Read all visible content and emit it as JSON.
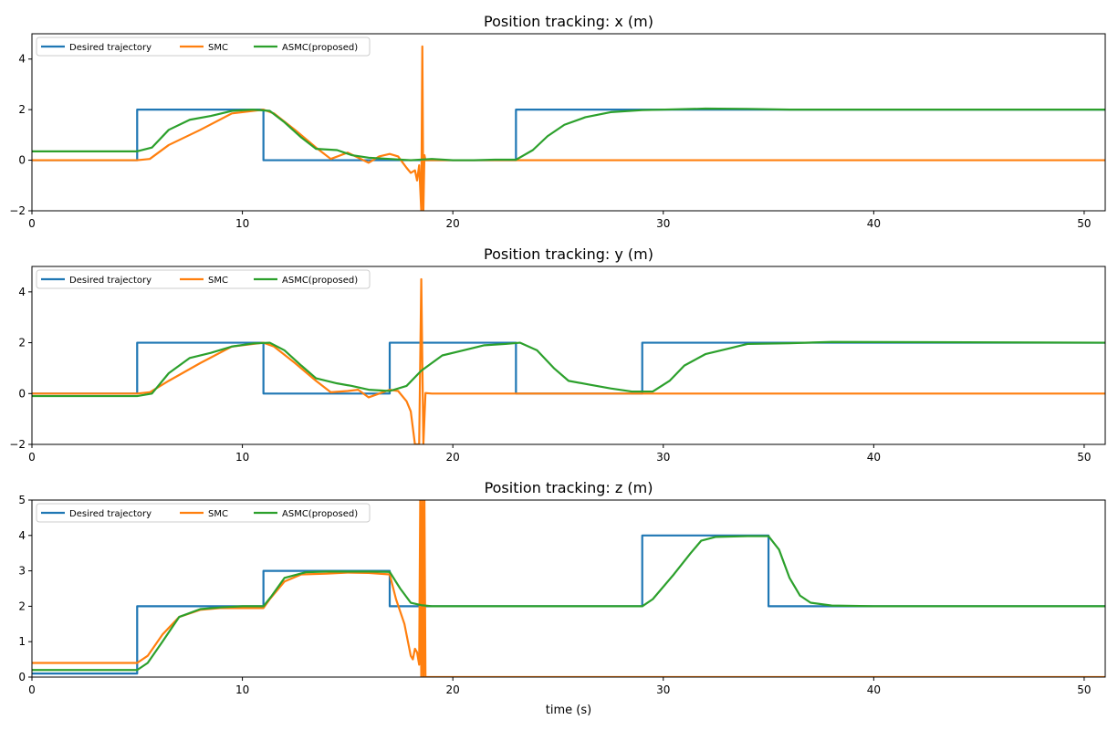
{
  "colors": {
    "desired": "#1f77b4",
    "smc": "#ff7f0e",
    "asmc": "#2ca02c"
  },
  "legend_placement": "upper-left",
  "chart_data": [
    {
      "type": "line",
      "title": "Position tracking: x (m)",
      "xlabel": "",
      "ylabel": "",
      "xlim": [
        0,
        51
      ],
      "ylim": [
        -2,
        5
      ],
      "xticks": [
        0,
        10,
        20,
        30,
        40,
        50
      ],
      "yticks": [
        -2,
        0,
        2,
        4
      ],
      "grid": false,
      "legend": [
        "Desired trajectory",
        "SMC",
        "ASMC(proposed)"
      ],
      "series": [
        {
          "name": "Desired trajectory",
          "x": [
            0,
            5,
            5,
            11,
            11,
            23,
            23,
            51
          ],
          "y": [
            0,
            0,
            2,
            2,
            0,
            0,
            2,
            2
          ]
        },
        {
          "name": "SMC",
          "x": [
            0,
            5,
            5.6,
            6.5,
            8,
            9.5,
            11,
            11.5,
            12.5,
            13.5,
            14.2,
            15,
            15.5,
            16,
            16.5,
            17,
            17.4,
            17.8,
            18,
            18.2,
            18.3,
            18.4,
            18.5,
            18.55,
            18.6,
            18.65,
            18.7,
            19,
            51
          ],
          "y": [
            0,
            0,
            0.05,
            0.6,
            1.2,
            1.85,
            2,
            1.85,
            1.2,
            0.5,
            0.05,
            0.3,
            0.1,
            -0.1,
            0.15,
            0.25,
            0.15,
            -0.3,
            -0.5,
            -0.4,
            -0.8,
            -0.2,
            -2,
            4.5,
            -2,
            0.2,
            0,
            0,
            0
          ]
        },
        {
          "name": "ASMC(proposed)",
          "x": [
            0,
            5,
            5.7,
            6.5,
            7.5,
            8.5,
            9.5,
            10.5,
            11.3,
            12,
            12.8,
            13.5,
            14.5,
            15.2,
            16,
            17,
            18,
            19,
            20,
            21,
            22,
            23,
            23.8,
            24.5,
            25.3,
            26.3,
            27.5,
            29,
            32,
            34,
            36,
            51
          ],
          "y": [
            0.35,
            0.35,
            0.5,
            1.2,
            1.6,
            1.75,
            1.95,
            2,
            1.95,
            1.5,
            0.9,
            0.45,
            0.4,
            0.2,
            0.1,
            0.05,
            0,
            0.05,
            0,
            0,
            0.02,
            0.02,
            0.4,
            0.95,
            1.4,
            1.7,
            1.9,
            1.98,
            2.04,
            2.03,
            2.0,
            2.0
          ]
        }
      ]
    },
    {
      "type": "line",
      "title": "Position tracking: y (m)",
      "xlabel": "",
      "ylabel": "",
      "xlim": [
        0,
        51
      ],
      "ylim": [
        -2,
        5
      ],
      "xticks": [
        0,
        10,
        20,
        30,
        40,
        50
      ],
      "yticks": [
        -2,
        0,
        2,
        4
      ],
      "grid": false,
      "legend": [
        "Desired trajectory",
        "SMC",
        "ASMC(proposed)"
      ],
      "series": [
        {
          "name": "Desired trajectory",
          "x": [
            0,
            5,
            5,
            11,
            11,
            17,
            17,
            23,
            23,
            29,
            29,
            51
          ],
          "y": [
            0,
            0,
            2,
            2,
            0,
            0,
            2,
            2,
            0,
            0,
            2,
            2
          ]
        },
        {
          "name": "SMC",
          "x": [
            0,
            5,
            5.6,
            6.5,
            8,
            9.5,
            11,
            11.5,
            12.5,
            13.5,
            14.2,
            15,
            15.5,
            16,
            16.5,
            17,
            17.4,
            17.8,
            18,
            18.2,
            18.3,
            18.4,
            18.5,
            18.6,
            18.7,
            19,
            51
          ],
          "y": [
            0,
            0,
            0.05,
            0.5,
            1.2,
            1.85,
            2,
            1.85,
            1.2,
            0.5,
            0.05,
            0.1,
            0.15,
            -0.15,
            0,
            0.15,
            0.1,
            -0.3,
            -0.7,
            -2,
            -2,
            -2,
            4.5,
            -2,
            0.02,
            0,
            0
          ]
        },
        {
          "name": "ASMC(proposed)",
          "x": [
            0,
            5,
            5.7,
            6.5,
            7.5,
            8.5,
            9.5,
            10.5,
            11.3,
            12,
            12.8,
            13.5,
            14.5,
            15.2,
            16,
            17,
            17.8,
            18.5,
            19.5,
            20.5,
            21.5,
            22.5,
            23.2,
            24,
            24.8,
            25.5,
            26.5,
            27.5,
            28.5,
            29.5,
            30.3,
            31,
            32,
            33,
            34,
            36,
            38,
            51
          ],
          "y": [
            -0.1,
            -0.1,
            0.0,
            0.8,
            1.4,
            1.6,
            1.85,
            1.97,
            2,
            1.7,
            1.1,
            0.6,
            0.4,
            0.3,
            0.15,
            0.1,
            0.3,
            0.9,
            1.5,
            1.7,
            1.9,
            1.95,
            2,
            1.7,
            1.0,
            0.5,
            0.35,
            0.2,
            0.08,
            0.08,
            0.5,
            1.1,
            1.55,
            1.75,
            1.95,
            1.98,
            2.03,
            2.0
          ]
        }
      ]
    },
    {
      "type": "line",
      "title": "Position tracking: z (m)",
      "xlabel": "time (s)",
      "ylabel": "",
      "xlim": [
        0,
        51
      ],
      "ylim": [
        0,
        5
      ],
      "xticks": [
        0,
        10,
        20,
        30,
        40,
        50
      ],
      "yticks": [
        0,
        1,
        2,
        3,
        4,
        5
      ],
      "grid": false,
      "legend": [
        "Desired trajectory",
        "SMC",
        "ASMC(proposed)"
      ],
      "series": [
        {
          "name": "Desired trajectory",
          "x": [
            0,
            5,
            5,
            11,
            11,
            17,
            17,
            29,
            29,
            35,
            35,
            51
          ],
          "y": [
            0.1,
            0.1,
            2,
            2,
            3,
            3,
            2,
            2,
            4,
            4,
            2,
            2
          ]
        },
        {
          "name": "SMC",
          "x": [
            0,
            5,
            5.5,
            6.2,
            7,
            8,
            9,
            10,
            11,
            11.3,
            12,
            12.8,
            14,
            15,
            16,
            17,
            17.3,
            17.7,
            18,
            18.1,
            18.2,
            18.3,
            18.4,
            18.45,
            18.5,
            18.55,
            18.6,
            18.65,
            18.7,
            19,
            51
          ],
          "y": [
            0.4,
            0.4,
            0.6,
            1.2,
            1.7,
            1.9,
            1.95,
            1.95,
            1.95,
            2.2,
            2.7,
            2.9,
            2.92,
            2.95,
            2.94,
            2.9,
            2.2,
            1.5,
            0.6,
            0.5,
            0.8,
            0.7,
            0.35,
            5,
            0,
            5,
            0,
            5,
            0.0,
            0.0,
            0.0
          ]
        },
        {
          "name": "ASMC(proposed)",
          "x": [
            0,
            5,
            5.5,
            6.2,
            7,
            8,
            9,
            10,
            11,
            11.4,
            12,
            13,
            14,
            15,
            16,
            17,
            17.5,
            18,
            18.5,
            19,
            20,
            25,
            29,
            29.5,
            30.5,
            31.3,
            31.8,
            32.5,
            34,
            35,
            35.5,
            36,
            36.5,
            37,
            38,
            40,
            51
          ],
          "y": [
            0.2,
            0.2,
            0.4,
            1.0,
            1.7,
            1.92,
            1.97,
            2,
            2,
            2.3,
            2.8,
            2.96,
            2.98,
            2.98,
            2.98,
            2.97,
            2.5,
            2.1,
            2.03,
            2.0,
            2.0,
            2.0,
            2.0,
            2.2,
            2.9,
            3.5,
            3.85,
            3.96,
            3.98,
            3.98,
            3.6,
            2.8,
            2.3,
            2.1,
            2.02,
            2.0,
            2.0
          ]
        }
      ]
    }
  ]
}
